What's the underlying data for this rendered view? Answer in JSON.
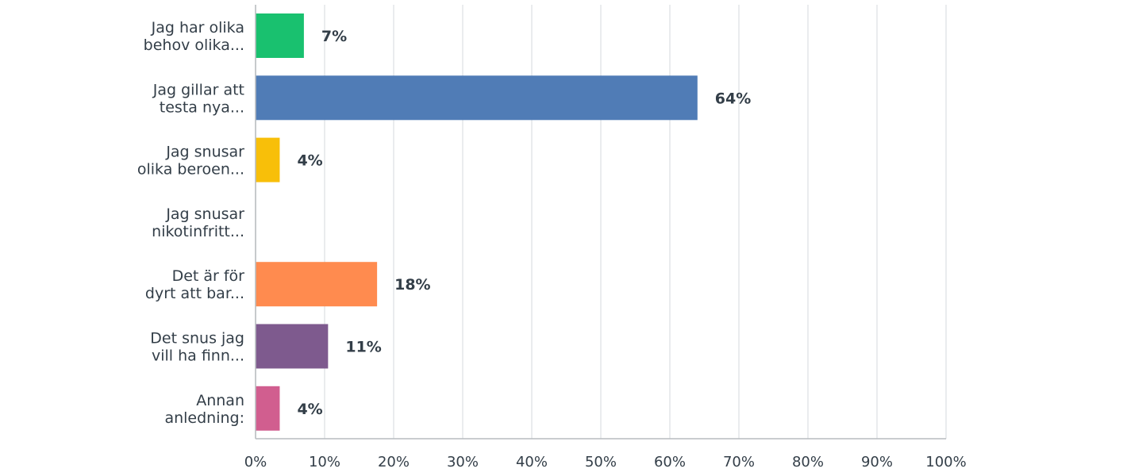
{
  "chart_data": {
    "type": "bar",
    "orientation": "horizontal",
    "categories": [
      [
        "Jag har olika",
        "behov olika..."
      ],
      [
        "Jag gillar att",
        "testa nya..."
      ],
      [
        "Jag snusar",
        "olika beroen..."
      ],
      [
        "Jag snusar",
        "nikotinfritt..."
      ],
      [
        "Det är för",
        "dyrt att bar..."
      ],
      [
        "Det snus jag",
        "vill ha finn..."
      ],
      [
        "Annan",
        "anledning:"
      ]
    ],
    "values": [
      7,
      64,
      3.5,
      0,
      17.6,
      10.5,
      3.5
    ],
    "value_labels": [
      "7%",
      "64%",
      "4%",
      "",
      "18%",
      "11%",
      "4%"
    ],
    "colors": [
      "#19c16f",
      "#507cb6",
      "#f8bf09",
      "#9d9d9d",
      "#ff8b4f",
      "#7e5a8e",
      "#d15e8f"
    ],
    "xlim": [
      0,
      100
    ],
    "x_ticks": [
      "0%",
      "10%",
      "20%",
      "30%",
      "40%",
      "50%",
      "60%",
      "70%",
      "80%",
      "90%",
      "100%"
    ],
    "grid": true
  }
}
